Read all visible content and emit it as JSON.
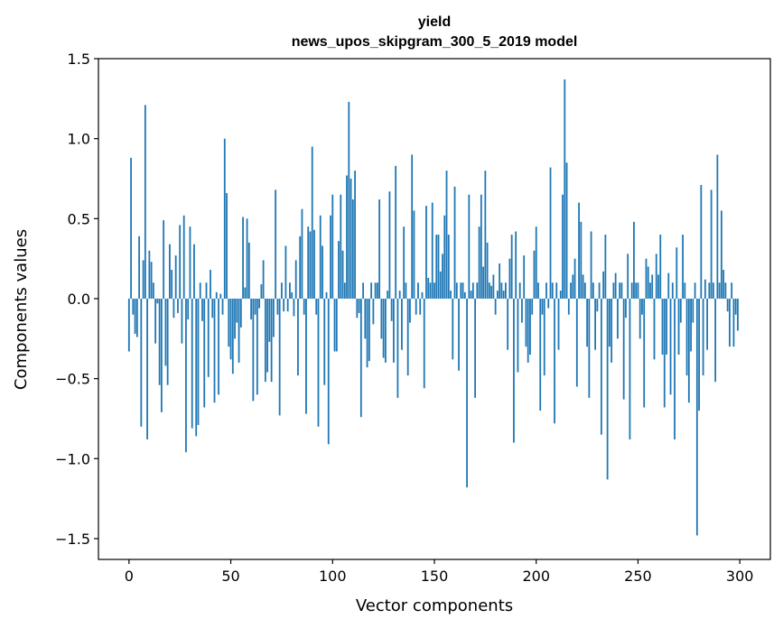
{
  "chart_data": {
    "type": "bar",
    "title": "yield",
    "subtitle": "news_upos_skipgram_300_5_2019 model",
    "xlabel": "Vector components",
    "ylabel": "Components values",
    "xlim": [
      -15,
      315
    ],
    "ylim": [
      -1.63,
      1.5
    ],
    "xticks": [
      0,
      50,
      100,
      150,
      200,
      250,
      300
    ],
    "xtick_labels": [
      "0",
      "50",
      "100",
      "150",
      "200",
      "250",
      "300"
    ],
    "yticks": [
      1.5,
      1.0,
      0.5,
      0.0,
      -0.5,
      -1.0,
      -1.5
    ],
    "ytick_labels": [
      "1.5",
      "1.0",
      "0.5",
      "0.0",
      "−0.5",
      "−1.0",
      "−1.5"
    ],
    "bar_color": "#1f77b4",
    "grid": false,
    "values": [
      -0.33,
      0.88,
      -0.1,
      -0.22,
      -0.24,
      0.39,
      -0.8,
      0.24,
      1.21,
      -0.88,
      0.3,
      0.23,
      0.1,
      -0.28,
      -0.03,
      -0.54,
      -0.71,
      0.49,
      -0.42,
      -0.54,
      0.34,
      0.18,
      -0.12,
      0.27,
      -0.09,
      0.46,
      -0.28,
      0.52,
      -0.96,
      -0.13,
      0.45,
      -0.81,
      0.34,
      -0.86,
      -0.79,
      0.1,
      -0.14,
      -0.68,
      0.1,
      -0.49,
      0.18,
      -0.12,
      -0.65,
      0.04,
      -0.6,
      0.03,
      -0.1,
      1.0,
      0.66,
      -0.3,
      -0.38,
      -0.47,
      -0.25,
      -0.15,
      -0.4,
      -0.18,
      0.51,
      0.07,
      0.5,
      0.35,
      -0.13,
      -0.64,
      -0.1,
      -0.6,
      -0.06,
      0.09,
      0.24,
      -0.52,
      -0.46,
      -0.27,
      -0.52,
      -0.24,
      0.68,
      -0.1,
      -0.73,
      0.1,
      -0.08,
      0.33,
      -0.08,
      0.1,
      0.04,
      -0.11,
      0.24,
      -0.48,
      0.39,
      0.56,
      -0.1,
      -0.72,
      0.45,
      0.42,
      0.95,
      0.43,
      -0.1,
      -0.8,
      0.52,
      0.33,
      -0.54,
      0.04,
      -0.91,
      0.52,
      0.65,
      -0.33,
      -0.33,
      0.36,
      0.65,
      0.3,
      0.1,
      0.77,
      1.23,
      0.75,
      0.62,
      0.8,
      -0.12,
      -0.09,
      -0.74,
      0.1,
      -0.25,
      -0.43,
      -0.39,
      0.1,
      -0.16,
      0.1,
      0.1,
      0.62,
      -0.25,
      -0.37,
      -0.4,
      0.05,
      0.67,
      -0.14,
      -0.4,
      0.83,
      -0.62,
      0.05,
      -0.32,
      0.45,
      0.1,
      -0.48,
      -0.15,
      0.9,
      0.55,
      -0.1,
      0.1,
      -0.1,
      0.04,
      -0.56,
      0.58,
      0.13,
      0.1,
      0.6,
      0.1,
      0.4,
      0.4,
      0.17,
      0.28,
      0.52,
      0.8,
      0.4,
      0.05,
      -0.38,
      0.7,
      0.1,
      -0.45,
      0.1,
      0.1,
      0.04,
      -1.18,
      0.65,
      0.05,
      0.1,
      -0.62,
      0.1,
      0.45,
      0.65,
      0.2,
      0.8,
      0.35,
      0.1,
      0.08,
      0.15,
      -0.1,
      0.05,
      0.22,
      0.1,
      0.05,
      0.1,
      -0.32,
      0.25,
      0.4,
      -0.9,
      0.42,
      -0.46,
      0.1,
      -0.15,
      0.27,
      -0.3,
      -0.4,
      -0.35,
      -0.1,
      0.3,
      0.45,
      0.1,
      -0.7,
      -0.1,
      -0.48,
      0.1,
      -0.06,
      0.82,
      0.1,
      -0.78,
      0.1,
      -0.32,
      0.05,
      0.65,
      1.37,
      0.85,
      -0.1,
      0.1,
      0.15,
      0.25,
      -0.55,
      0.6,
      0.48,
      0.15,
      0.1,
      -0.3,
      -0.62,
      0.42,
      0.1,
      -0.32,
      -0.08,
      0.1,
      -0.85,
      0.17,
      0.4,
      -1.13,
      -0.3,
      -0.4,
      0.1,
      0.16,
      -0.25,
      0.1,
      0.1,
      -0.63,
      -0.12,
      0.28,
      -0.88,
      0.1,
      0.48,
      0.1,
      0.1,
      -0.25,
      -0.1,
      -0.68,
      0.25,
      0.2,
      0.1,
      0.15,
      -0.38,
      0.28,
      0.15,
      0.4,
      -0.35,
      -0.68,
      -0.35,
      0.16,
      -0.6,
      0.1,
      -0.88,
      0.32,
      -0.35,
      -0.15,
      0.4,
      0.1,
      -0.48,
      -0.65,
      -0.33,
      -0.15,
      0.1,
      -1.48,
      -0.7,
      0.71,
      -0.48,
      0.12,
      -0.32,
      0.1,
      0.68,
      0.1,
      -0.52,
      0.9,
      0.1,
      0.55,
      0.18,
      0.1,
      -0.08,
      -0.3,
      0.1,
      -0.3,
      -0.1,
      -0.2
    ]
  }
}
